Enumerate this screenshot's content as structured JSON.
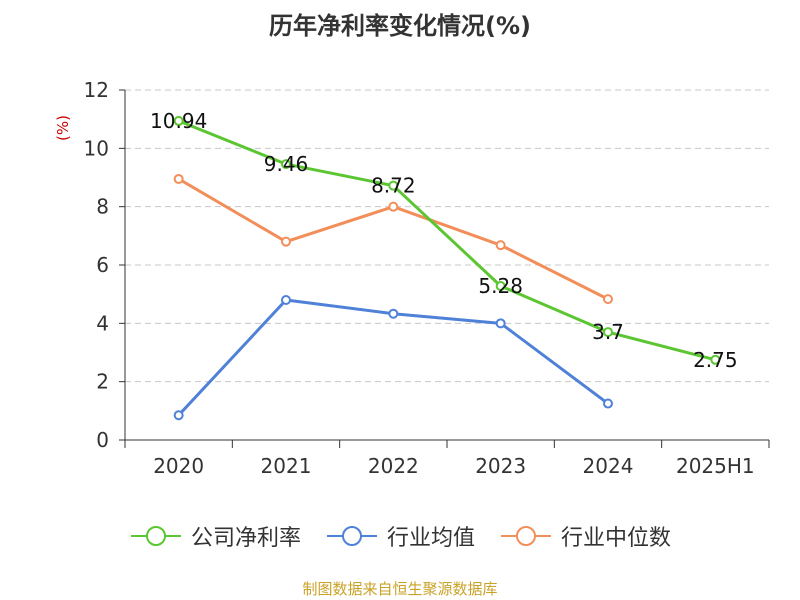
{
  "title": "历年净利率变化情况(%)",
  "source": "制图数据来自恒生聚源数据库",
  "chart_data": {
    "type": "line",
    "title": "历年净利率变化情况(%)",
    "ylabel": "(%)",
    "xlabel": "",
    "categories": [
      "2020",
      "2021",
      "2022",
      "2023",
      "2024",
      "2025H1"
    ],
    "ylim": [
      0,
      12
    ],
    "yticks": [
      0,
      2,
      4,
      6,
      8,
      10,
      12
    ],
    "grid": true,
    "legend_position": "bottom",
    "series": [
      {
        "name": "公司净利率",
        "color": "#5cc632",
        "values": [
          10.94,
          9.46,
          8.72,
          5.28,
          3.7,
          2.75
        ],
        "labels": [
          "10.94",
          "9.46",
          "8.72",
          "5.28",
          "3.7",
          "2.75"
        ]
      },
      {
        "name": "行业均值",
        "color": "#4f81d8",
        "values": [
          0.85,
          4.8,
          4.33,
          4.0,
          1.25,
          null
        ]
      },
      {
        "name": "行业中位数",
        "color": "#f28e5a",
        "values": [
          8.95,
          6.8,
          8.0,
          6.68,
          4.83,
          null
        ]
      }
    ]
  },
  "colors": {
    "unit_label": "#cc0000",
    "axis": "#333333",
    "grid": "#c8c8c8",
    "source": "#c9a227"
  }
}
